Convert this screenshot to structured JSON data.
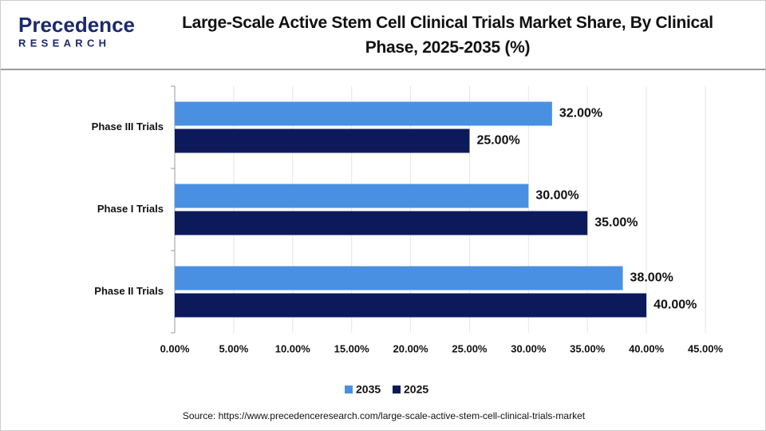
{
  "logo": {
    "name": "Precedence",
    "tagline": "RESEARCH"
  },
  "chart_data": {
    "type": "hbar",
    "title": "Large-Scale Active Stem Cell Clinical Trials Market Share, By Clinical Phase, 2025-2035 (%)",
    "categories": [
      "Phase III Trials",
      "Phase I Trials",
      "Phase II Trials"
    ],
    "series": [
      {
        "name": "2035",
        "color": "#4a90e2",
        "values": [
          32,
          30,
          38
        ],
        "value_labels": [
          "32.00%",
          "30.00%",
          "38.00%"
        ]
      },
      {
        "name": "2025",
        "color": "#0c1a5c",
        "values": [
          25,
          35,
          40
        ],
        "value_labels": [
          "25.00%",
          "35.00%",
          "40.00%"
        ]
      }
    ],
    "xlim": [
      0,
      45
    ],
    "xticks": [
      {
        "value": 0,
        "label": "0.00%"
      },
      {
        "value": 5,
        "label": "5.00%"
      },
      {
        "value": 10,
        "label": "10.00%"
      },
      {
        "value": 15,
        "label": "15.00%"
      },
      {
        "value": 20,
        "label": "20.00%"
      },
      {
        "value": 25,
        "label": "25.00%"
      },
      {
        "value": 30,
        "label": "30.00%"
      },
      {
        "value": 35,
        "label": "35.00%"
      },
      {
        "value": 40,
        "label": "40.00%"
      },
      {
        "value": 45,
        "label": "45.00%"
      }
    ],
    "grid": true,
    "legend": "bottom"
  },
  "source": "Source: https://www.precedenceresearch.com/large-scale-active-stem-cell-clinical-trials-market"
}
